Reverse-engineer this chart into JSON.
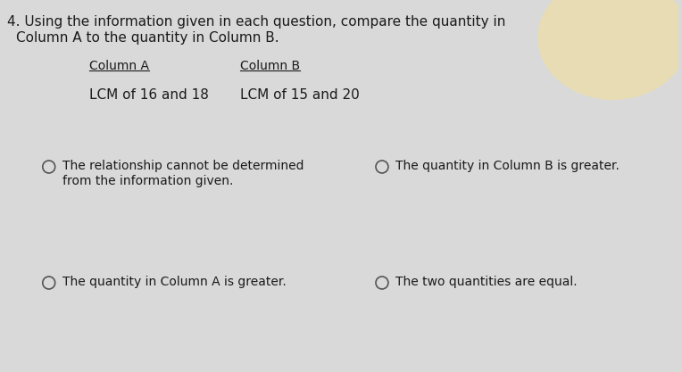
{
  "question_number": "4.",
  "question_line1": "Using the information given in each question, compare the quantity in",
  "question_line2": "Column A to the quantity in Column B.",
  "col_a_label": "Column A",
  "col_b_label": "Column B",
  "col_a_value": "LCM of 16 and 18",
  "col_b_value": "LCM of 15 and 20",
  "option1_line1": "The relationship cannot be determined",
  "option1_line2": "from the information given.",
  "option2": "The quantity in Column B is greater.",
  "option3": "The quantity in Column A is greater.",
  "option4": "The two quantities are equal.",
  "bg_color": "#d9d9d9",
  "text_color": "#1a1a1a",
  "font_size_question": 11,
  "font_size_columns": 10,
  "font_size_values": 11,
  "font_size_options": 10,
  "glow_color": "#f5e090",
  "circle_edge_color": "#555555"
}
